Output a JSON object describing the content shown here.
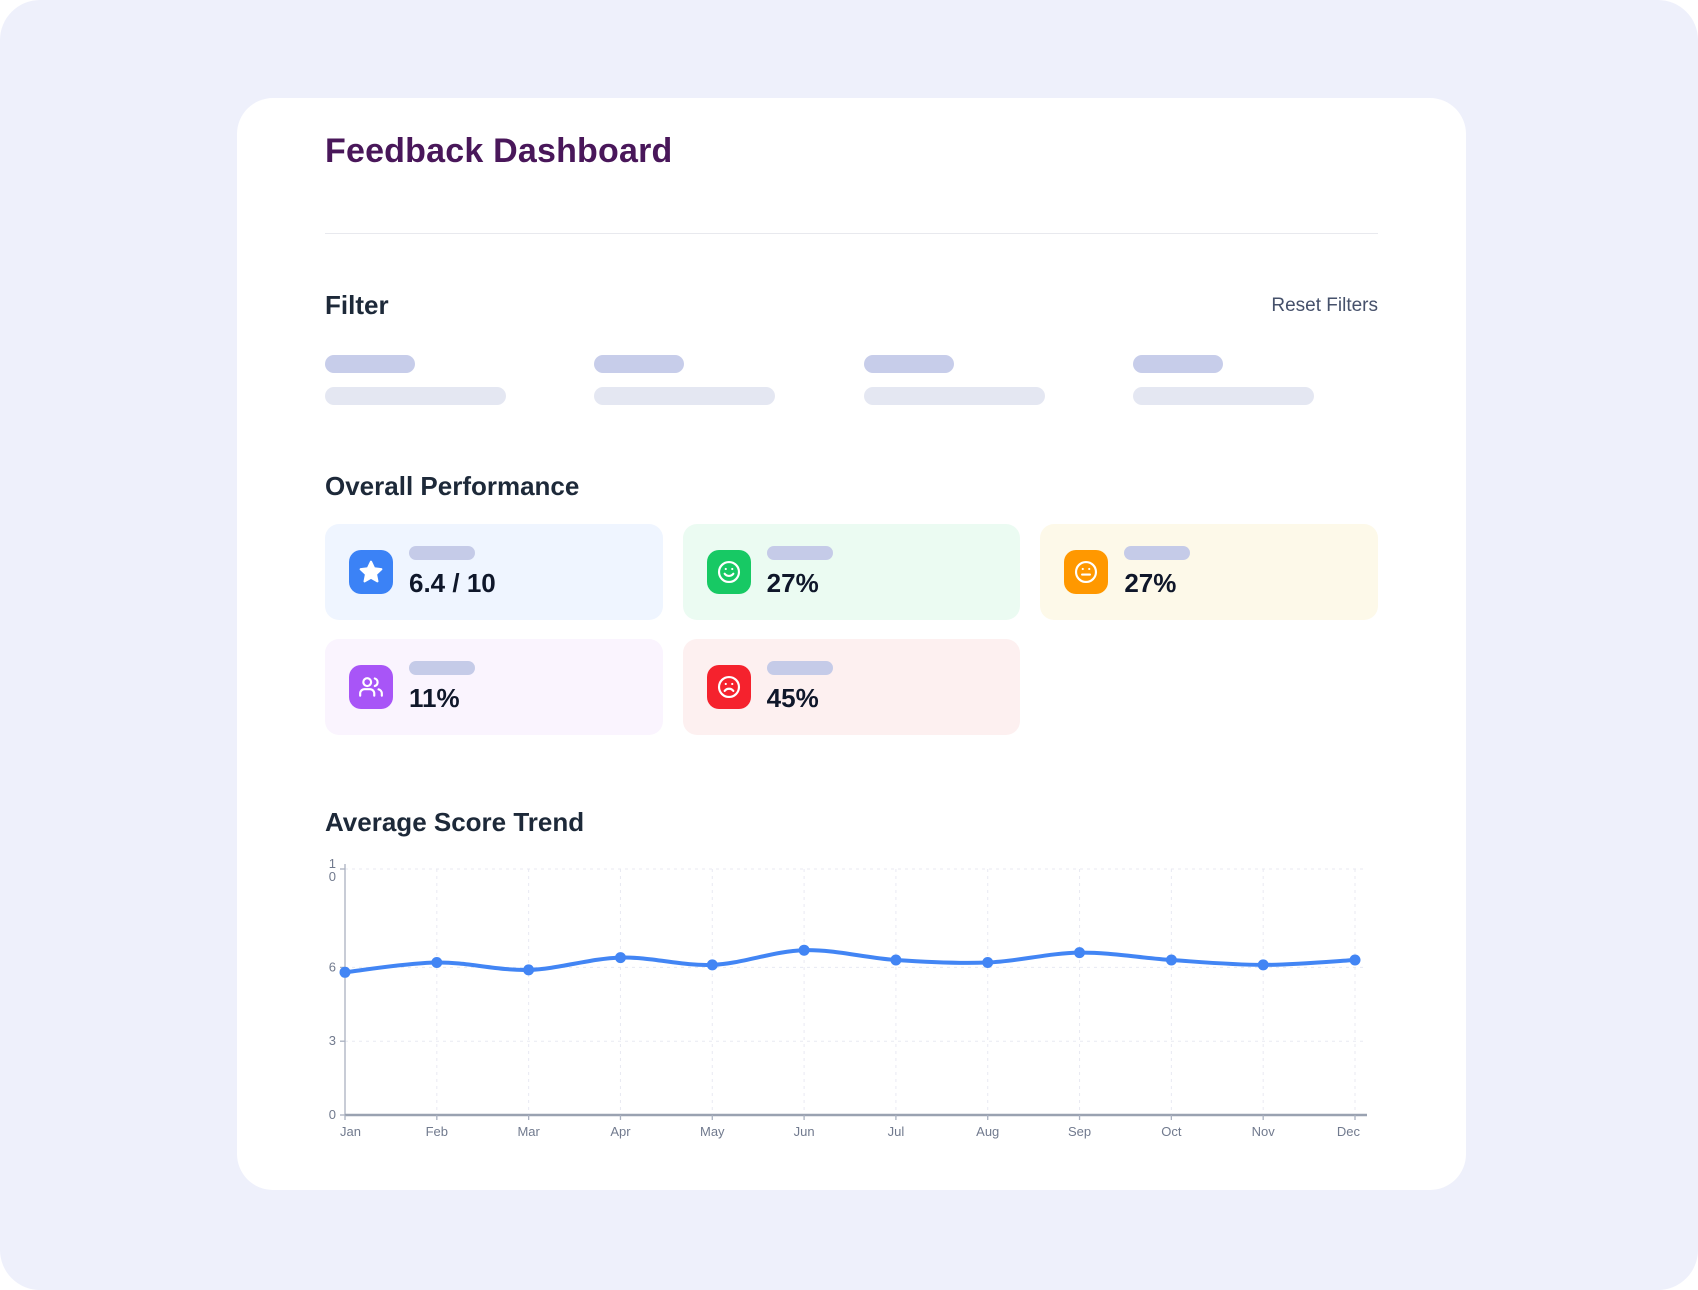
{
  "page": {
    "title": "Feedback Dashboard"
  },
  "filter": {
    "heading": "Filter",
    "reset_label": "Reset Filters",
    "skeleton_columns": 4
  },
  "performance": {
    "heading": "Overall Performance",
    "cards": [
      {
        "name": "average-score",
        "icon": "star-icon",
        "value": "6.4 / 10",
        "accent": "#3B82F6",
        "bg": "#EFF5FF"
      },
      {
        "name": "positive",
        "icon": "smile-face-icon",
        "value": "27%",
        "accent": "#17C964",
        "bg": "#EBFBF2"
      },
      {
        "name": "neutral",
        "icon": "neutral-face-icon",
        "value": "27%",
        "accent": "#FF9800",
        "bg": "#FDF9E9"
      },
      {
        "name": "participants",
        "icon": "users-icon",
        "value": "11%",
        "accent": "#A855F7",
        "bg": "#FAF4FE"
      },
      {
        "name": "negative",
        "icon": "frown-face-icon",
        "value": "45%",
        "accent": "#F5222D",
        "bg": "#FDF0F0"
      }
    ]
  },
  "trend": {
    "heading": "Average Score Trend"
  },
  "chart_data": {
    "type": "line",
    "title": "Average Score Trend",
    "x": [
      "Jan",
      "Feb",
      "Mar",
      "Apr",
      "May",
      "Jun",
      "Jul",
      "Aug",
      "Sep",
      "Oct",
      "Nov",
      "Dec"
    ],
    "values": [
      5.8,
      6.2,
      5.9,
      6.4,
      6.1,
      6.7,
      6.3,
      6.2,
      6.6,
      6.3,
      6.1,
      6.3
    ],
    "ylabel": "",
    "xlabel": "",
    "ylim": [
      0,
      10
    ],
    "y_ticks": [
      0,
      3,
      6,
      10
    ],
    "grid": true,
    "legend": "none",
    "line_color": "#4285F4"
  }
}
